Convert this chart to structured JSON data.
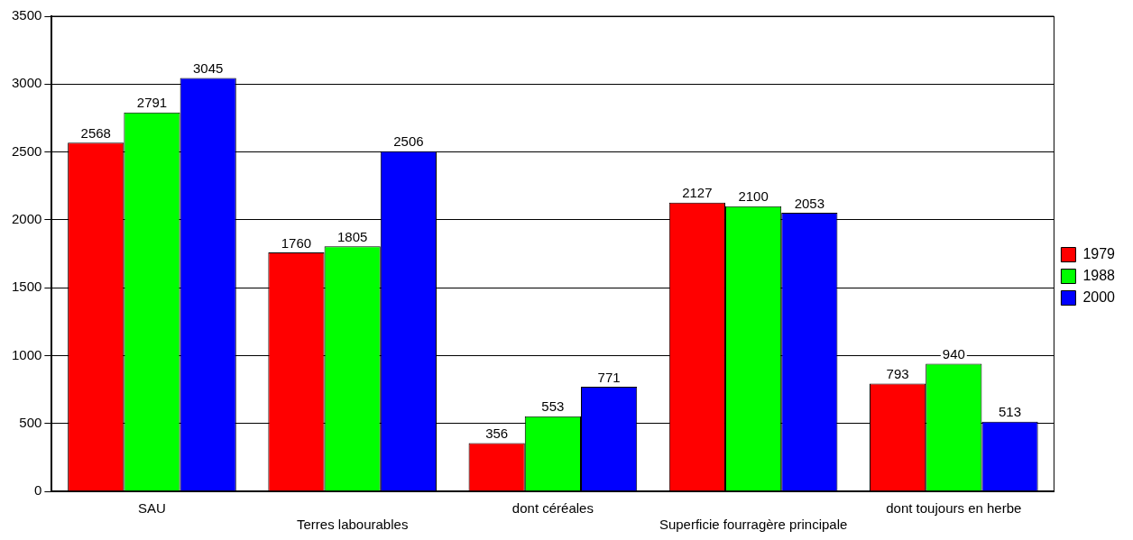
{
  "chart_data": {
    "type": "bar",
    "categories": [
      "SAU",
      "Terres labourables",
      "dont céréales",
      "Superficie fourragère principale",
      "dont toujours en herbe"
    ],
    "series": [
      {
        "name": "1979",
        "color": "#ff0000",
        "values": [
          2568,
          1760,
          356,
          2127,
          793
        ]
      },
      {
        "name": "1988",
        "color": "#00ff00",
        "values": [
          2791,
          1805,
          553,
          2100,
          940
        ]
      },
      {
        "name": "2000",
        "color": "#0000ff",
        "values": [
          3045,
          2506,
          771,
          2053,
          513
        ]
      }
    ],
    "ylim": [
      0,
      3500
    ],
    "yticks": [
      0,
      500,
      1000,
      1500,
      2000,
      2500,
      3000,
      3500
    ],
    "grid": "y",
    "legend": "right",
    "data_labels": true
  }
}
